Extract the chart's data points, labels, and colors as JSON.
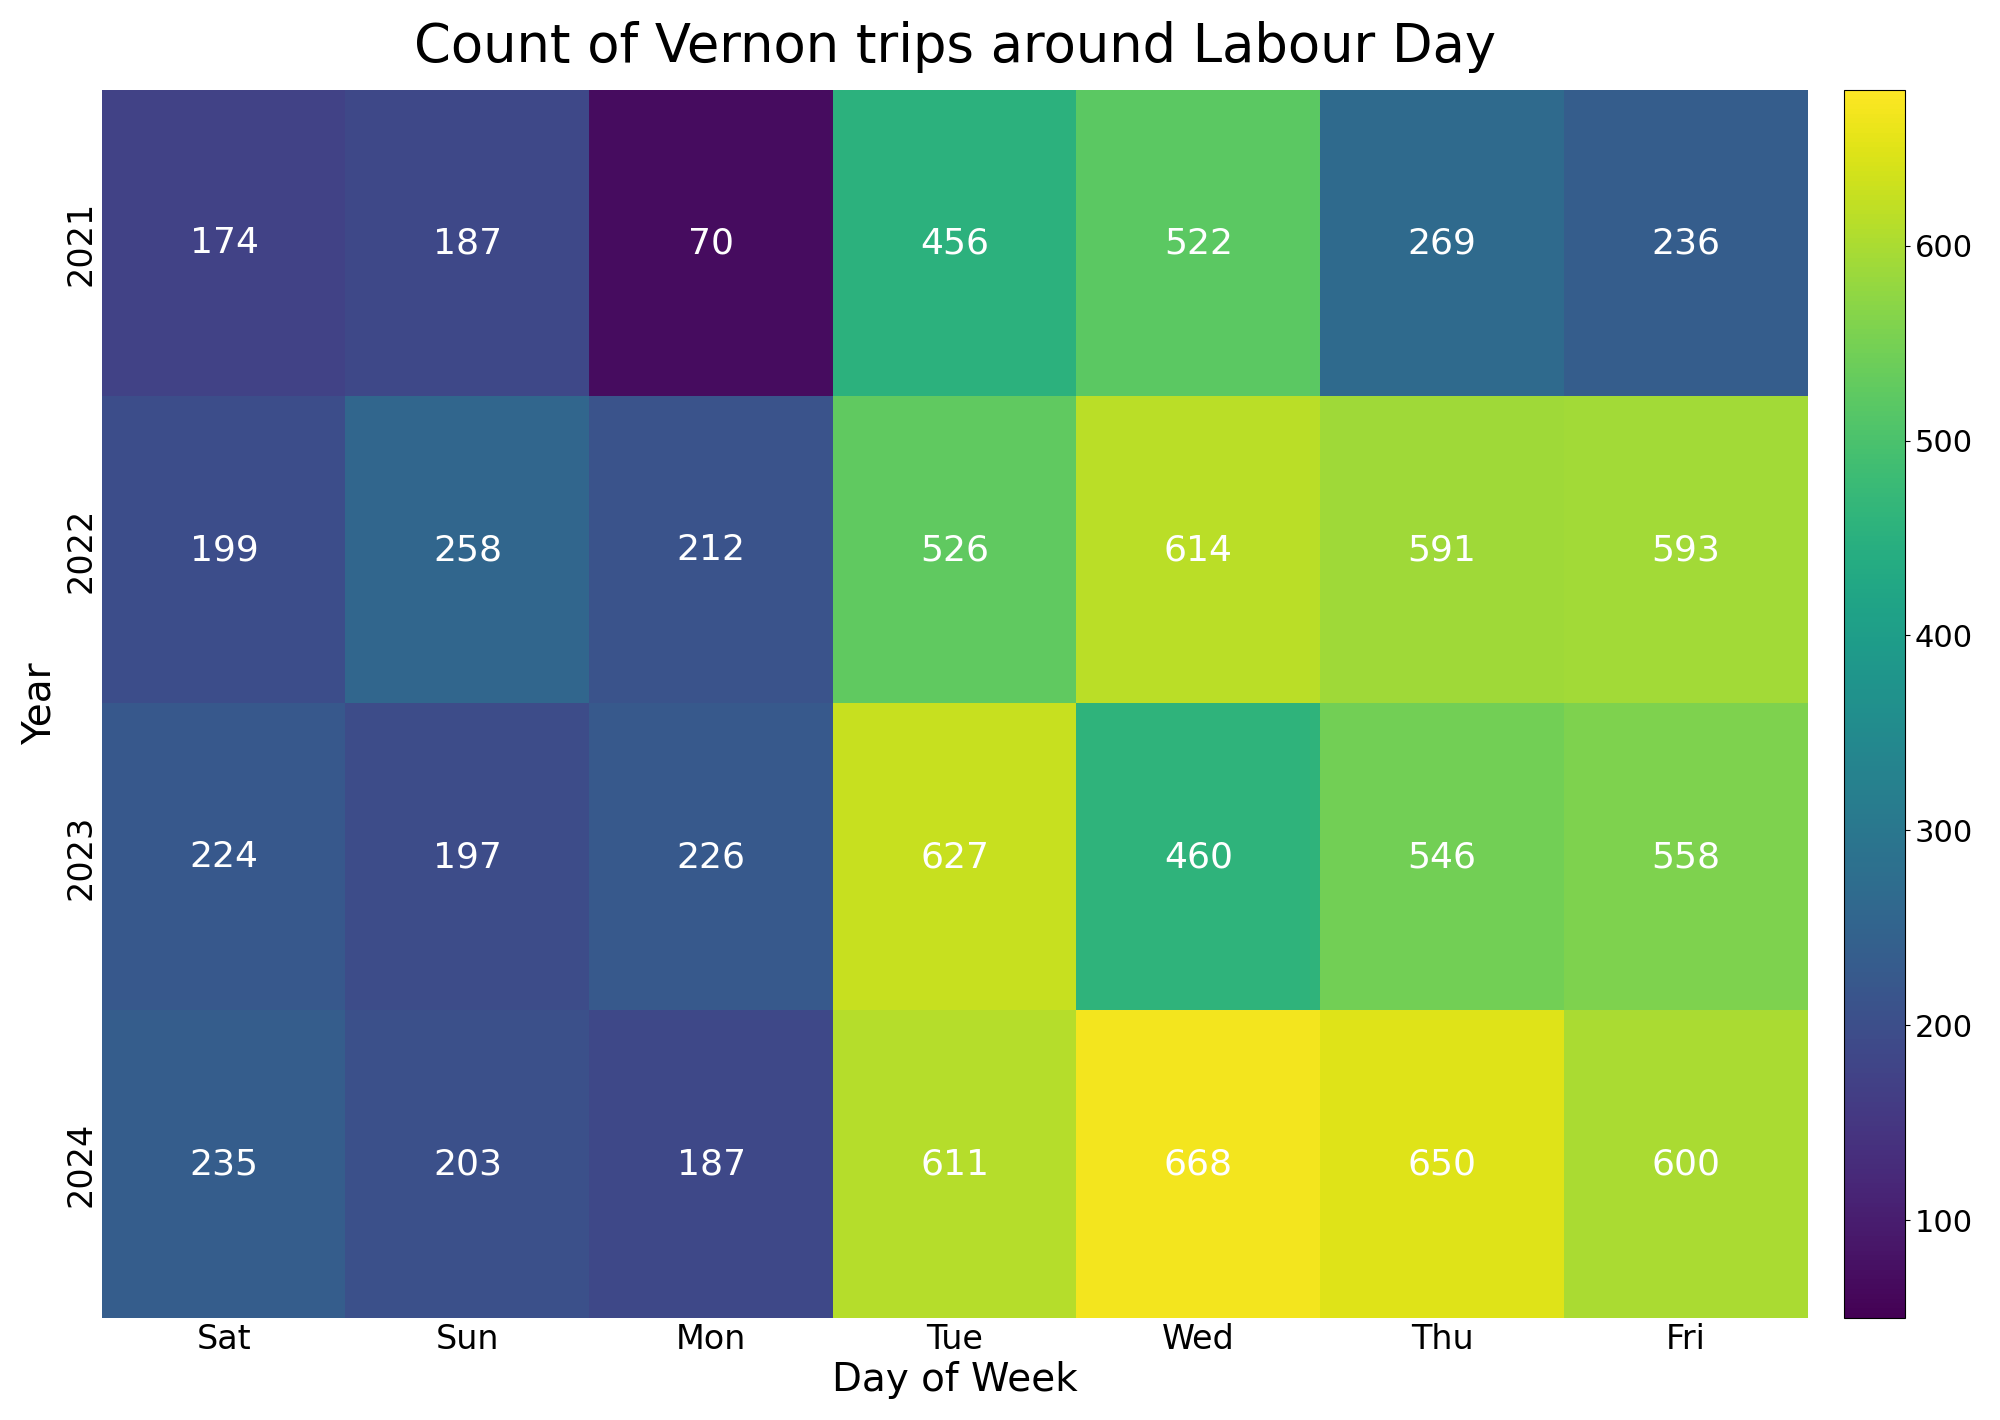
{
  "title": "Count of Vernon trips around Labour Day",
  "xlabel": "Day of Week",
  "ylabel": "Year",
  "years": [
    2021,
    2022,
    2023,
    2024
  ],
  "days": [
    "Sat",
    "Sun",
    "Mon",
    "Tue",
    "Wed",
    "Thu",
    "Fri"
  ],
  "values": [
    [
      174,
      187,
      70,
      456,
      522,
      269,
      236
    ],
    [
      199,
      258,
      212,
      526,
      614,
      591,
      593
    ],
    [
      224,
      197,
      226,
      627,
      460,
      546,
      558
    ],
    [
      235,
      203,
      187,
      611,
      668,
      650,
      600
    ]
  ],
  "cmap": "viridis",
  "vmin": 50,
  "vmax": 680,
  "colorbar_ticks": [
    100,
    200,
    300,
    400,
    500,
    600
  ],
  "text_color": "white",
  "title_fontsize": 38,
  "label_fontsize": 28,
  "tick_fontsize": 24,
  "annot_fontsize": 26,
  "cbar_fontsize": 22
}
